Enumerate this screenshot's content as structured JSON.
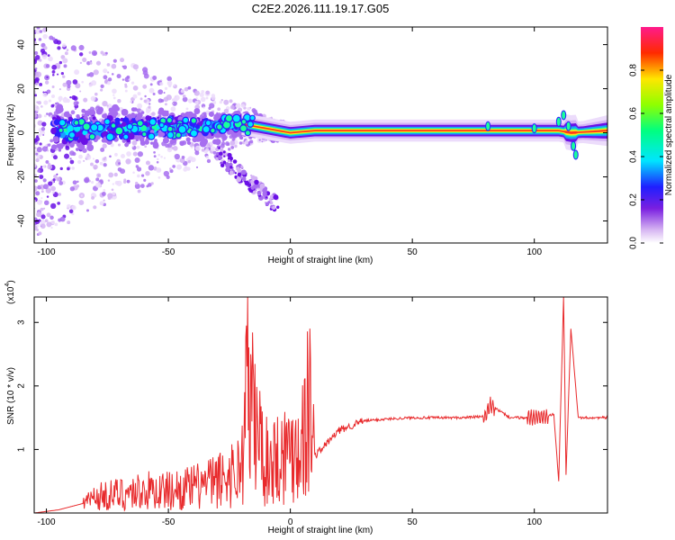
{
  "title": "C2E2.2026.111.19.17.G05",
  "colorbar": {
    "label": "Normalized spectral amplitude",
    "ticks": [
      "0.0",
      "0.2",
      "0.4",
      "0.6",
      "0.8"
    ]
  },
  "chart_data": [
    {
      "type": "heatmap",
      "xlabel": "Height of straight line (km)",
      "ylabel": "Frequency (Hz)",
      "xlim": [
        -105,
        130
      ],
      "ylim": [
        -50,
        48
      ],
      "xticks": [
        "-100",
        "-50",
        "0",
        "50",
        "100"
      ],
      "yticks": [
        "-40",
        "-20",
        "0",
        "20",
        "40"
      ],
      "colorscale": "normalized spectral amplitude 0 to 1",
      "ridge": {
        "x": [
          -90,
          -80,
          -70,
          -60,
          -50,
          -40,
          -30,
          -20,
          -10,
          0,
          10,
          30,
          50,
          80,
          100,
          110,
          115,
          130
        ],
        "y": [
          1,
          2,
          2,
          2,
          3,
          2,
          3,
          4,
          2,
          0,
          1,
          1,
          1,
          1,
          1,
          1,
          0,
          1
        ]
      }
    },
    {
      "type": "line",
      "xlabel": "Height of straight line (km)",
      "ylabel": "SNR (10 * v/v)",
      "y_exponent": "(x10",
      "y_exponent_power": "4",
      "xlim": [
        -105,
        130
      ],
      "ylim": [
        0,
        3.4
      ],
      "xticks": [
        "-100",
        "-50",
        "0",
        "50",
        "100"
      ],
      "yticks": [
        "1",
        "2",
        "3"
      ],
      "line_color": "#e8292b",
      "series": [
        {
          "x": [
            -105,
            -95,
            -85,
            -80,
            -70,
            -60,
            -50,
            -40,
            -30,
            -20,
            -18,
            -10,
            0,
            5,
            8,
            10,
            20,
            30,
            40,
            50,
            60,
            70,
            80,
            82,
            90,
            100,
            108,
            110,
            112,
            113,
            115,
            118,
            120,
            130
          ],
          "y": [
            0.0,
            0.05,
            0.15,
            0.25,
            0.3,
            0.35,
            0.35,
            0.4,
            0.5,
            0.7,
            1.95,
            0.8,
            1.0,
            1.2,
            1.75,
            0.9,
            1.3,
            1.45,
            1.48,
            1.5,
            1.5,
            1.5,
            1.52,
            1.7,
            1.5,
            1.5,
            1.55,
            0.5,
            3.4,
            0.6,
            2.9,
            1.5,
            1.5,
            1.5
          ]
        }
      ]
    }
  ]
}
